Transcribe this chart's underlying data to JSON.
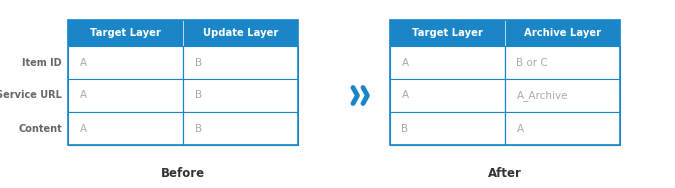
{
  "header_bg": "#1a86c8",
  "header_text_color": "#ffffff",
  "cell_bg": "#ffffff",
  "cell_text_color": "#aaaaaa",
  "border_color": "#1a86c8",
  "row_label_color": "#666666",
  "before_label": "Before",
  "after_label": "After",
  "arrow_color": "#1a86c8",
  "before_headers": [
    "Target Layer",
    "Update Layer"
  ],
  "after_headers": [
    "Target Layer",
    "Archive Layer"
  ],
  "row_labels": [
    "Item ID",
    "Service URL",
    "Content"
  ],
  "before_data": [
    [
      "A",
      "B"
    ],
    [
      "A",
      "B"
    ],
    [
      "A",
      "B"
    ]
  ],
  "after_data": [
    [
      "A",
      "B or C"
    ],
    [
      "A",
      "A_Archive"
    ],
    [
      "B",
      "A"
    ]
  ],
  "fig_bg": "#ffffff",
  "fig_width": 6.75,
  "fig_height": 1.88,
  "dpi": 100
}
